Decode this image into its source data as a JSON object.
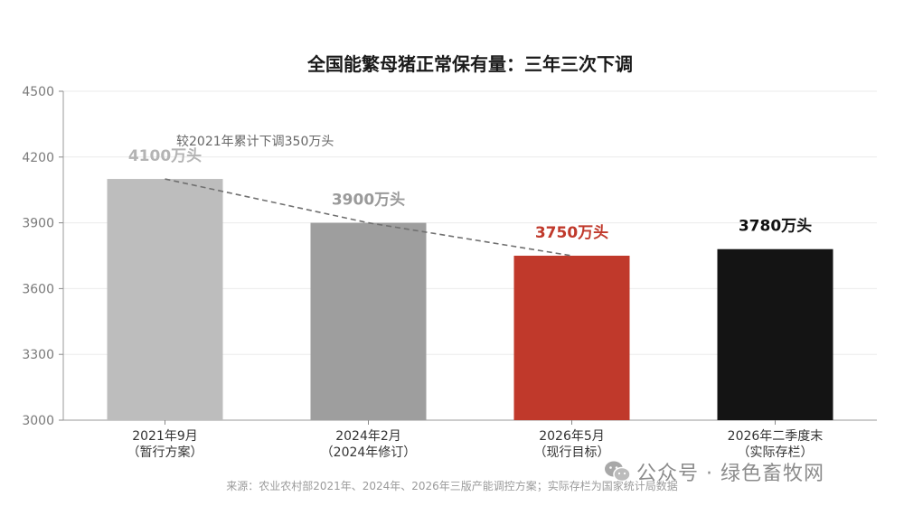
{
  "chart_data": {
    "type": "bar",
    "title": "全国能繁母猪正常保有量：三年三次下调",
    "categories": [
      [
        "2021年9月",
        "（暂行方案）"
      ],
      [
        "2024年2月",
        "（2024年修订）"
      ],
      [
        "2026年5月",
        "（现行目标）"
      ],
      [
        "2026年二季度末",
        "（实际存栏）"
      ]
    ],
    "values": [
      4100,
      3900,
      3750,
      3780
    ],
    "data_labels": [
      "4100万头",
      "3900万头",
      "3750万头",
      "3780万头"
    ],
    "bar_colors": [
      "#bdbdbd",
      "#9e9e9e",
      "#c0392b",
      "#141414"
    ],
    "label_colors": [
      "#b4b4b4",
      "#9a9a9a",
      "#c0392b",
      "#111111"
    ],
    "ylim": [
      3000,
      4500
    ],
    "yticks": [
      3000,
      3300,
      3600,
      3900,
      4200,
      4500
    ],
    "grid": true,
    "trend": {
      "from_index": 0,
      "to_index": 2,
      "style": "dashed",
      "color": "#707070"
    },
    "annotation": "较2021年累计下调350万头"
  },
  "source": "来源：农业农村部2021年、2024年、2026年三版产能调控方案；实际存栏为国家统计局数据",
  "watermark": {
    "icon": "wechat-icon",
    "text": "公众号 · 绿色畜牧网"
  }
}
